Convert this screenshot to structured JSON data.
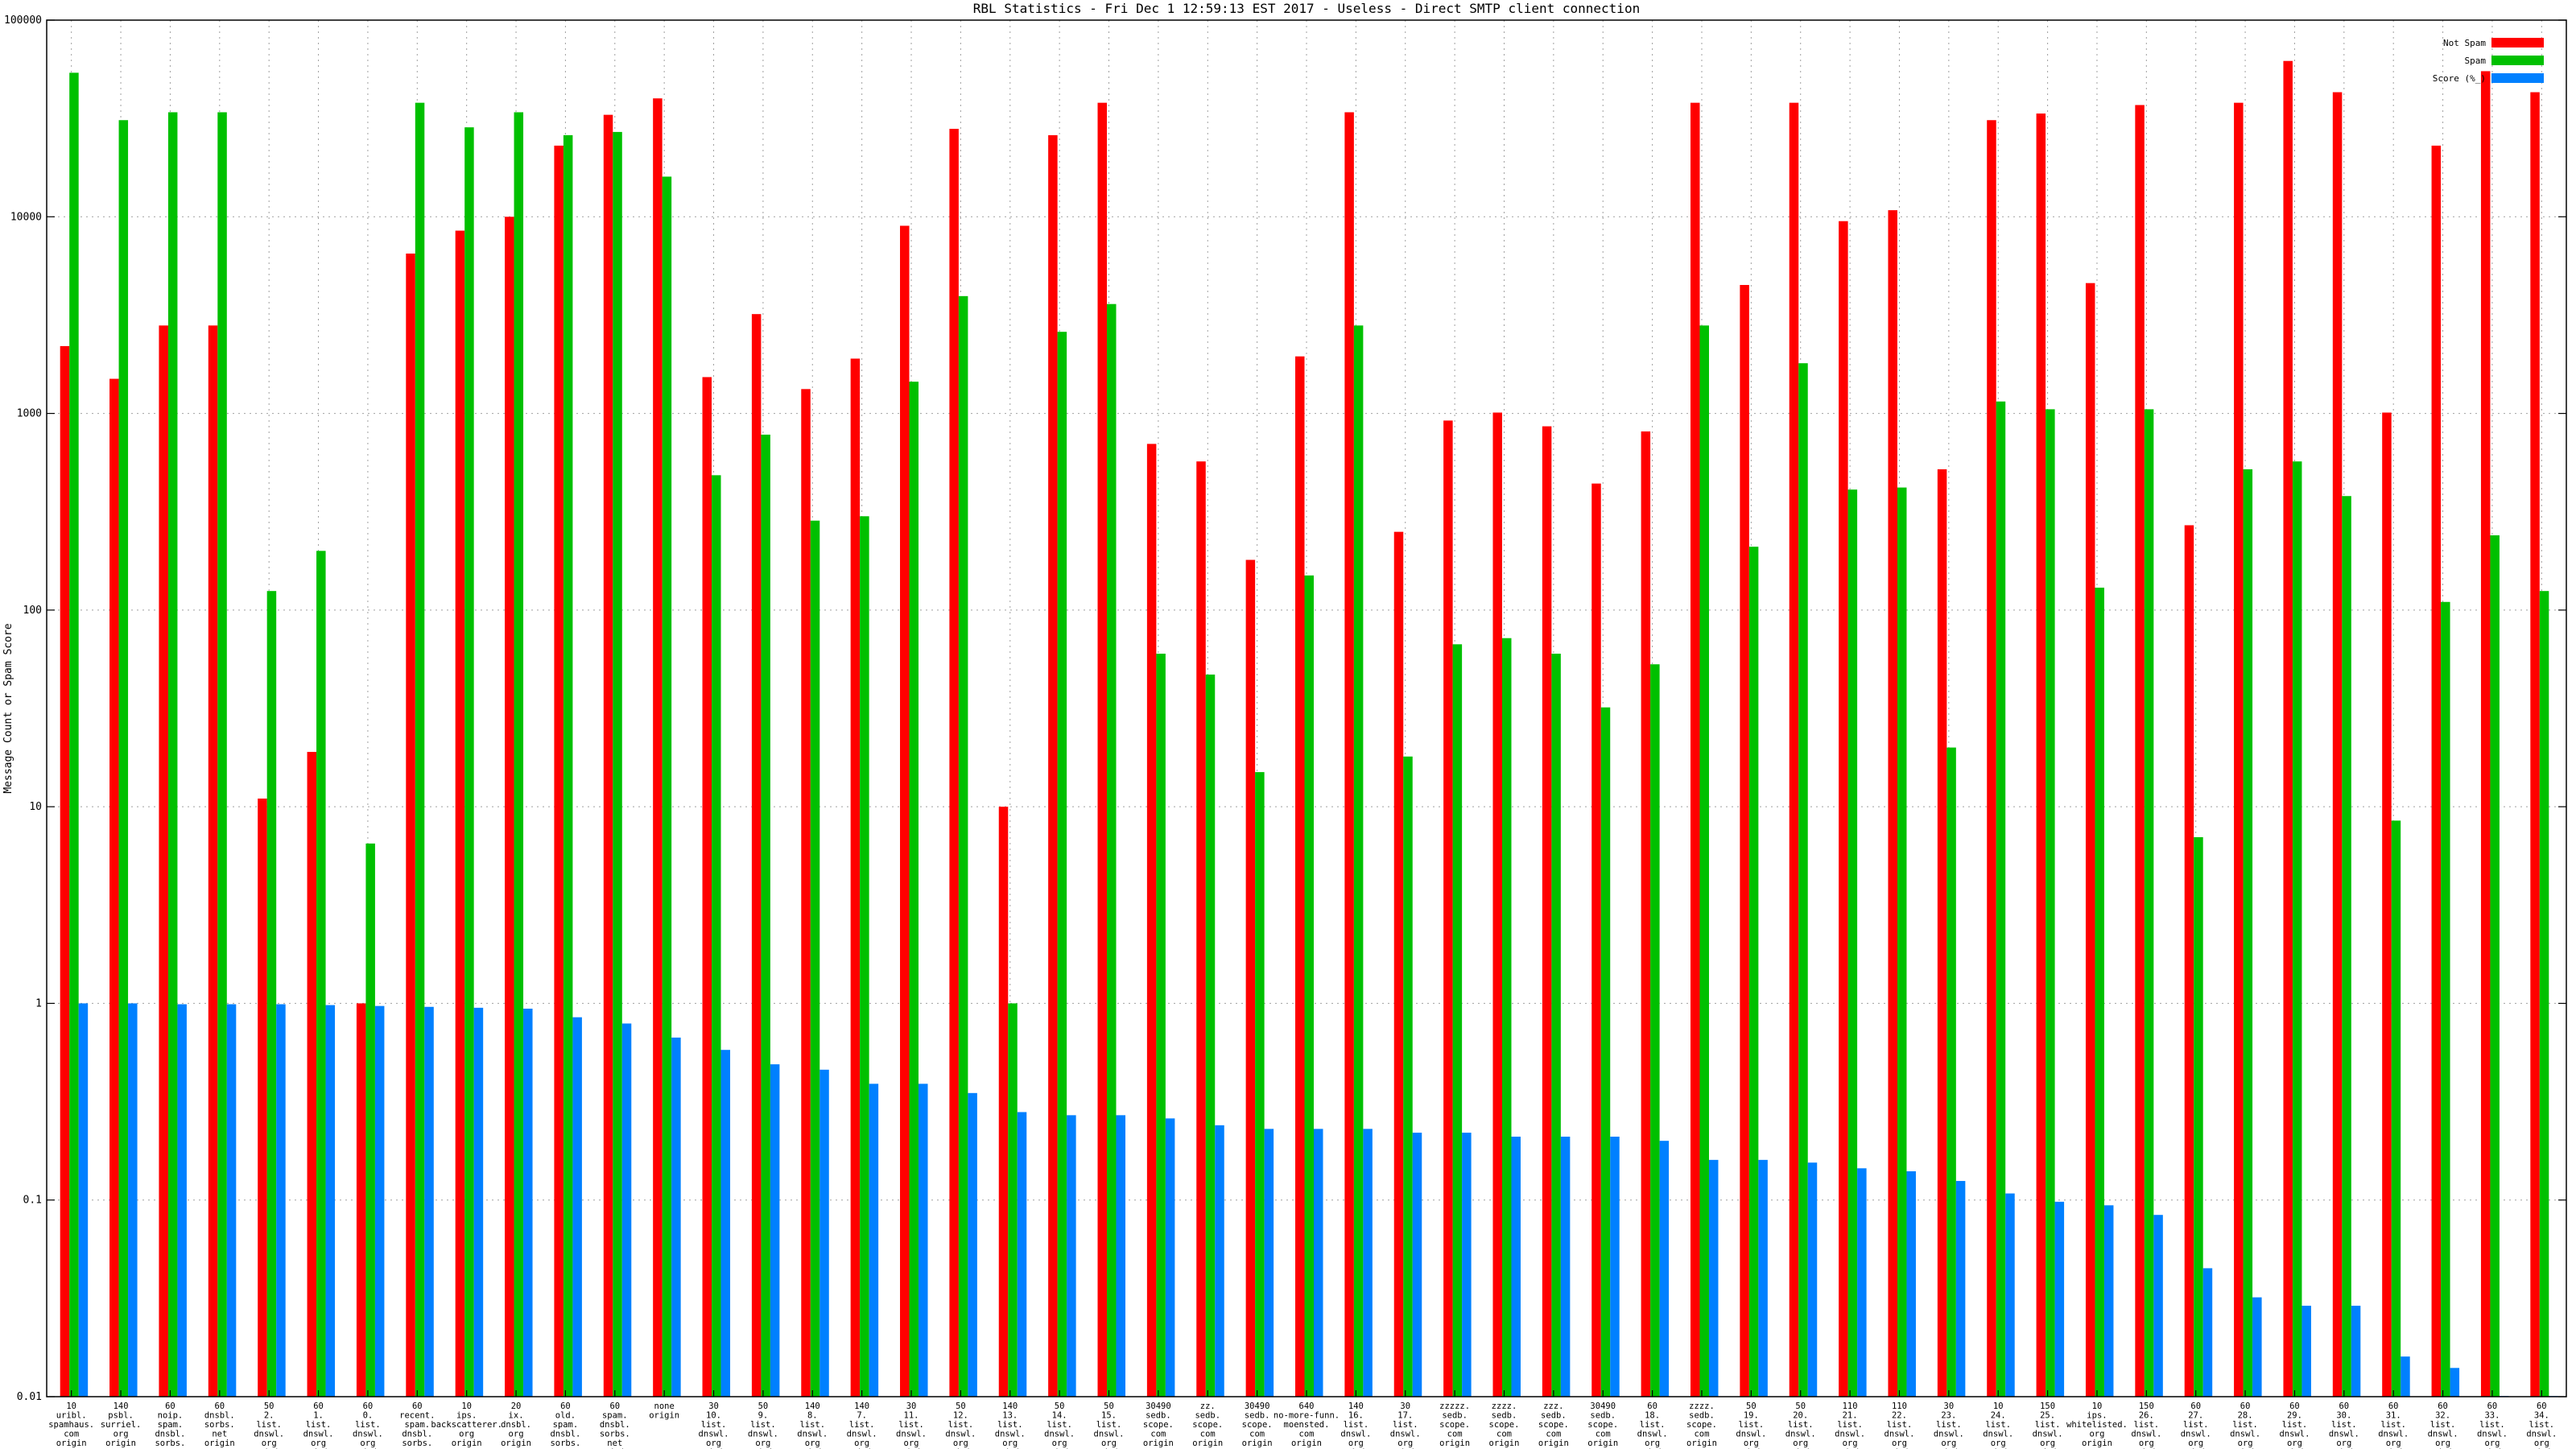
{
  "chart_data": {
    "type": "bar",
    "title": "RBL Statistics - Fri Dec  1 12:59:13 EST 2017 - Useless - Direct SMTP client connection",
    "xlabel": "",
    "ylabel": "Message Count or Spam Score",
    "yscale": "log",
    "ylim": [
      0.01,
      100000
    ],
    "yticks": [
      {
        "value": 0.01,
        "label": "0.01"
      },
      {
        "value": 0.1,
        "label": "0.1"
      },
      {
        "value": 1,
        "label": "1"
      },
      {
        "value": 10,
        "label": "10"
      },
      {
        "value": 100,
        "label": "100"
      },
      {
        "value": 1000,
        "label": "1000"
      },
      {
        "value": 10000,
        "label": "10000"
      },
      {
        "value": 100000,
        "label": "100000"
      }
    ],
    "grid": true,
    "legend_position": "top-right",
    "colors": {
      "not_spam": "#ff0000",
      "spam": "#00c000",
      "score": "#0080ff",
      "grid": "#a0a0a0"
    },
    "categories": [
      [
        "10",
        "uribl.",
        "spamhaus.",
        "com",
        "origin"
      ],
      [
        "140",
        "psbl.",
        "surriel.",
        "org",
        "origin"
      ],
      [
        "60",
        "noip.",
        "spam.",
        "dnsbl.",
        "sorbs.",
        "net",
        "origin"
      ],
      [
        "60",
        "dnsbl.",
        "sorbs.",
        "net",
        "origin"
      ],
      [
        "50",
        "2.",
        "list.",
        "dnswl.",
        "org",
        "origin"
      ],
      [
        "60",
        "1.",
        "list.",
        "dnswl.",
        "org",
        "origin"
      ],
      [
        "60",
        "0.",
        "list.",
        "dnswl.",
        "org",
        "origin"
      ],
      [
        "60",
        "recent.",
        "spam.",
        "dnsbl.",
        "sorbs.",
        "net",
        "origin"
      ],
      [
        "10",
        "ips.",
        "backscatterer.",
        "org",
        "origin"
      ],
      [
        "20",
        "ix.",
        "dnsbl.",
        "org",
        "origin"
      ],
      [
        "60",
        "old.",
        "spam.",
        "dnsbl.",
        "sorbs.",
        "net",
        "origin"
      ],
      [
        "60",
        "spam.",
        "dnsbl.",
        "sorbs.",
        "net",
        "origin"
      ],
      [
        "none",
        "origin"
      ],
      [
        "30",
        "10.",
        "list.",
        "dnswl.",
        "org",
        "origin"
      ],
      [
        "50",
        "9.",
        "list.",
        "dnswl.",
        "org",
        "origin"
      ],
      [
        "140",
        "8.",
        "list.",
        "dnswl.",
        "org",
        "origin"
      ],
      [
        "140",
        "7.",
        "list.",
        "dnswl.",
        "org",
        "origin"
      ],
      [
        "30",
        "11.",
        "list.",
        "dnswl.",
        "org",
        "origin"
      ],
      [
        "50",
        "12.",
        "list.",
        "dnswl.",
        "org",
        "origin"
      ],
      [
        "140",
        "13.",
        "list.",
        "dnswl.",
        "org",
        "origin"
      ],
      [
        "50",
        "14.",
        "list.",
        "dnswl.",
        "org",
        "origin"
      ],
      [
        "50",
        "15.",
        "list.",
        "dnswl.",
        "org",
        "origin"
      ],
      [
        "30490",
        "sedb.",
        "scope.",
        "com",
        "origin"
      ],
      [
        "zz.",
        "sedb.",
        "scope.",
        "com",
        "origin"
      ],
      [
        "30490",
        "sedb.",
        "scope.",
        "com",
        "origin"
      ],
      [
        "640",
        "no-more-funn.",
        "moensted.",
        "com",
        "origin"
      ],
      [
        "140",
        "16.",
        "list.",
        "dnswl.",
        "org",
        "origin"
      ],
      [
        "30",
        "17.",
        "list.",
        "dnswl.",
        "org",
        "origin"
      ],
      [
        "zzzzz.",
        "sedb.",
        "scope.",
        "com",
        "origin"
      ],
      [
        "zzzz.",
        "sedb.",
        "scope.",
        "com",
        "origin"
      ],
      [
        "zzz.",
        "sedb.",
        "scope.",
        "com",
        "origin"
      ],
      [
        "30490",
        "sedb.",
        "scope.",
        "com",
        "origin"
      ],
      [
        "60",
        "18.",
        "list.",
        "dnswl.",
        "org",
        "origin"
      ],
      [
        "zzzz.",
        "sedb.",
        "scope.",
        "com",
        "origin"
      ],
      [
        "50",
        "19.",
        "list.",
        "dnswl.",
        "org",
        "origin"
      ],
      [
        "50",
        "20.",
        "list.",
        "dnswl.",
        "org",
        "origin"
      ],
      [
        "110",
        "21.",
        "list.",
        "dnswl.",
        "org",
        "origin"
      ],
      [
        "110",
        "22.",
        "list.",
        "dnswl.",
        "org",
        "origin"
      ],
      [
        "30",
        "23.",
        "list.",
        "dnswl.",
        "org",
        "origin"
      ],
      [
        "10",
        "24.",
        "list.",
        "dnswl.",
        "org",
        "origin"
      ],
      [
        "150",
        "25.",
        "list.",
        "dnswl.",
        "org",
        "origin"
      ],
      [
        "10",
        "ips.",
        "whitelisted.",
        "org",
        "origin"
      ],
      [
        "150",
        "26.",
        "list.",
        "dnswl.",
        "org",
        "origin"
      ],
      [
        "60",
        "27.",
        "list.",
        "dnswl.",
        "org",
        "origin"
      ],
      [
        "60",
        "28.",
        "list.",
        "dnswl.",
        "org",
        "origin"
      ],
      [
        "60",
        "29.",
        "list.",
        "dnswl.",
        "org",
        "origin"
      ],
      [
        "60",
        "30.",
        "list.",
        "dnswl.",
        "org",
        "origin"
      ],
      [
        "60",
        "31.",
        "list.",
        "dnswl.",
        "org",
        "origin"
      ],
      [
        "60",
        "32.",
        "list.",
        "dnswl.",
        "org",
        "origin"
      ],
      [
        "60",
        "33.",
        "list.",
        "dnswl.",
        "org",
        "origin"
      ],
      [
        "60",
        "34.",
        "list.",
        "dnswl.",
        "org",
        "origin"
      ]
    ],
    "series": [
      {
        "name": "Not Spam",
        "values": [
          2200,
          1500,
          2800,
          2800,
          11,
          19,
          1,
          6500,
          8500,
          10000,
          23000,
          33000,
          40000,
          1530,
          3200,
          1330,
          1900,
          9000,
          28000,
          10,
          26000,
          38000,
          700,
          570,
          180,
          1950,
          34000,
          250,
          920,
          1010,
          860,
          440,
          810,
          38000,
          4500,
          38000,
          9500,
          10800,
          520,
          31000,
          33500,
          4600,
          37000,
          270,
          38000,
          62000,
          43000,
          1010,
          23000,
          55000,
          43000
        ]
      },
      {
        "name": "Spam",
        "values": [
          54000,
          31000,
          34000,
          34000,
          125,
          200,
          6.5,
          38000,
          28500,
          34000,
          26000,
          27000,
          16000,
          485,
          780,
          285,
          300,
          1450,
          3950,
          1,
          2600,
          3600,
          60,
          47,
          15,
          150,
          2800,
          18,
          67,
          72,
          60,
          32,
          53,
          2800,
          210,
          1800,
          410,
          420,
          20,
          1150,
          1050,
          130,
          1050,
          7,
          520,
          570,
          380,
          8.5,
          110,
          240,
          125
        ]
      },
      {
        "name": "Score (%_)",
        "values": [
          1.0,
          1.0,
          0.99,
          0.99,
          0.99,
          0.98,
          0.97,
          0.96,
          0.95,
          0.94,
          0.85,
          0.79,
          0.67,
          0.58,
          0.49,
          0.46,
          0.39,
          0.39,
          0.35,
          0.28,
          0.27,
          0.27,
          0.26,
          0.24,
          0.23,
          0.23,
          0.23,
          0.22,
          0.22,
          0.21,
          0.21,
          0.21,
          0.2,
          0.16,
          0.16,
          0.155,
          0.145,
          0.14,
          0.125,
          0.108,
          0.098,
          0.094,
          0.084,
          0.045,
          0.032,
          0.029,
          0.029,
          0.016,
          0.014,
          0.01,
          0.01
        ]
      }
    ]
  }
}
